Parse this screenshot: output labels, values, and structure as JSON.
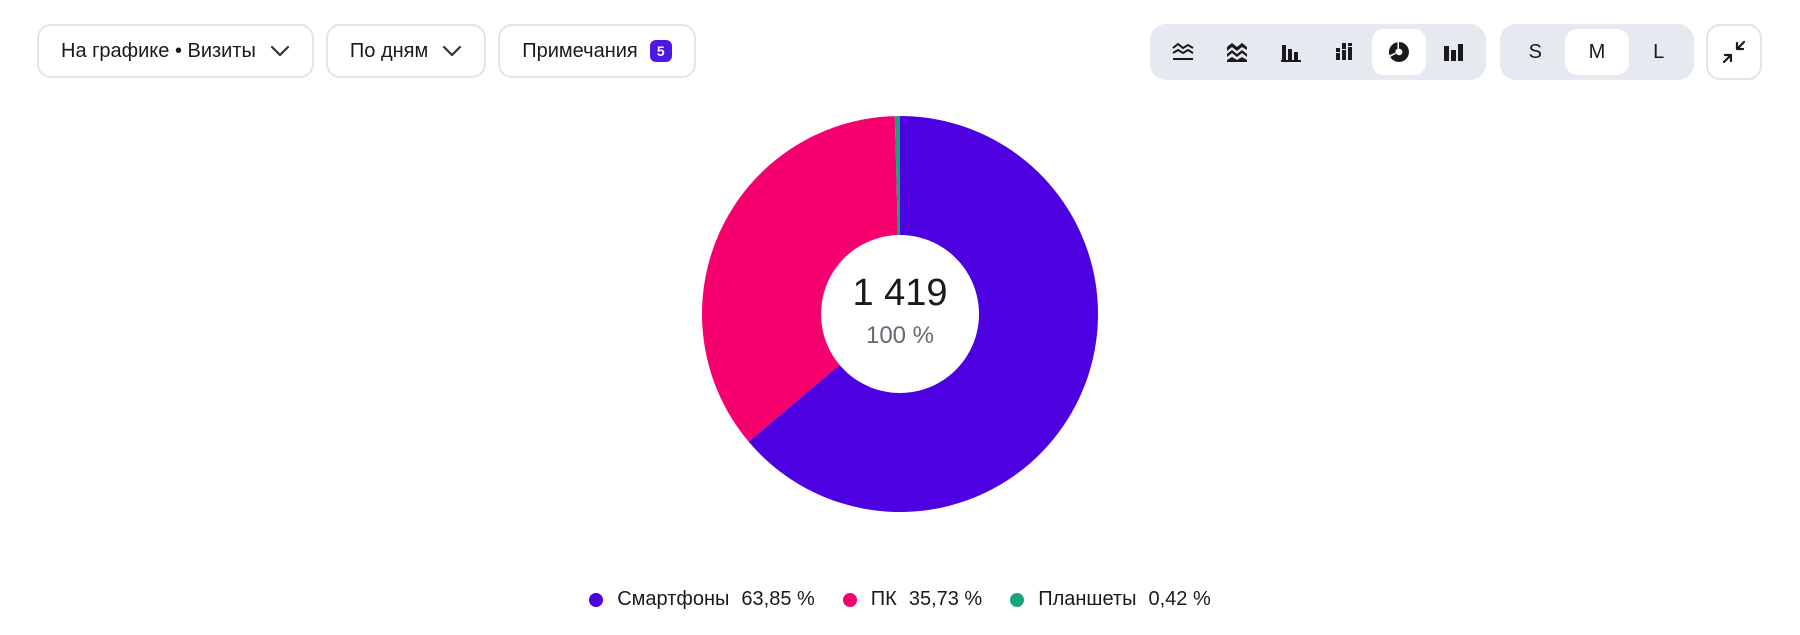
{
  "controls": {
    "metric_label": "На графике • Визиты",
    "grouping_label": "По дням",
    "notes_label": "Примечания",
    "notes_count": "5",
    "chart_types": [
      "line-chart-icon",
      "stacked-area-icon",
      "bar-chart-icon",
      "stacked-bar-icon",
      "pie-chart-icon",
      "column-chart-icon"
    ],
    "active_chart_type": "pie-chart-icon",
    "sizes": [
      "S",
      "M",
      "L"
    ],
    "active_size": "M"
  },
  "center": {
    "total": "1 419",
    "percent": "100 %"
  },
  "colors": {
    "Смартфоны": "#4d00e0",
    "ПК": "#f5006e",
    "Планшеты": "#1aa37a"
  },
  "legend": [
    {
      "name": "Смартфоны",
      "value": "63,85 %"
    },
    {
      "name": "ПК",
      "value": "35,73 %"
    },
    {
      "name": "Планшеты",
      "value": "0,42 %"
    }
  ],
  "chart_data": {
    "type": "pie",
    "total": 1419,
    "categories": [
      "Смартфоны",
      "ПК",
      "Планшеты"
    ],
    "values": [
      63.85,
      35.73,
      0.42
    ]
  }
}
